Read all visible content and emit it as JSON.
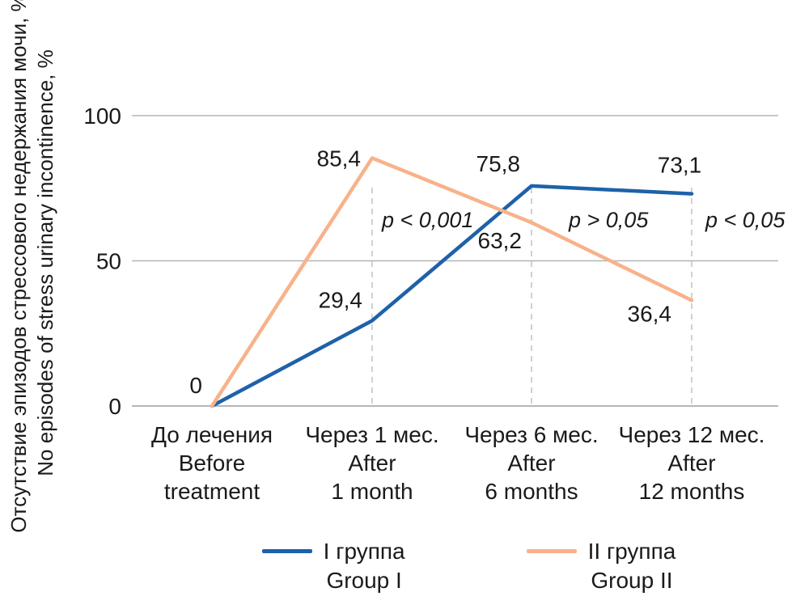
{
  "y_axis": {
    "title_ru": "Отсутствие эпизодов стрессового недержания мочи, %",
    "title_en": "No episodes of stress urinary incontinence, %"
  },
  "chart_data": {
    "type": "line",
    "categories": [
      [
        "До лечения",
        "Before",
        "treatment"
      ],
      [
        "Через 1 мес.",
        "After",
        "1 month"
      ],
      [
        "Через 6 мес.",
        "After",
        "6 months"
      ],
      [
        "Через 12 мес.",
        "After",
        "12 months"
      ]
    ],
    "series": [
      {
        "name_ru": "I группа",
        "name_en": "Group I",
        "color": "#1e61a9",
        "values": [
          0,
          29.4,
          75.8,
          73.1
        ]
      },
      {
        "name_ru": "II группа",
        "name_en": "Group II",
        "color": "#f8b28a",
        "values": [
          0,
          85.4,
          63.2,
          36.4
        ]
      }
    ],
    "annotations": [
      "p < 0,001",
      "p > 0,05",
      "p < 0,05"
    ],
    "yticks": [
      0,
      50,
      100
    ],
    "ylim": [
      0,
      100
    ],
    "grid": {
      "horizontal": "solid gray at yticks",
      "vertical": "dashed gray at categories 1-3"
    },
    "legend_position": "bottom",
    "decimal_separator": ","
  }
}
